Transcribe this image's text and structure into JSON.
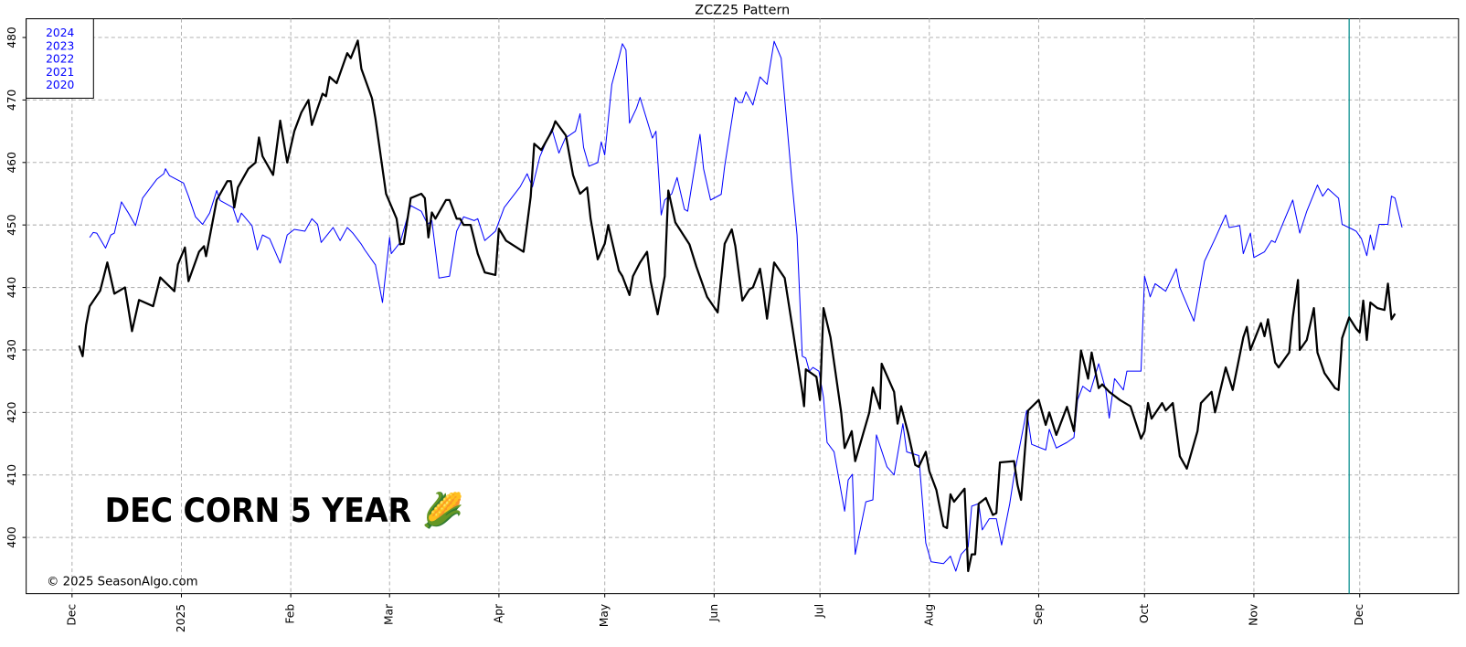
{
  "chart_data": {
    "type": "line",
    "title": "ZCZ25  Pattern",
    "xlim": [
      -13,
      393
    ],
    "ylim": [
      391,
      483
    ],
    "yticks": [
      400,
      410,
      420,
      430,
      440,
      450,
      460,
      470,
      480
    ],
    "xticks": [
      {
        "value": 0,
        "label": "Dec"
      },
      {
        "value": 31,
        "label": "2025"
      },
      {
        "value": 62,
        "label": "Feb"
      },
      {
        "value": 90,
        "label": "Mar"
      },
      {
        "value": 121,
        "label": "Apr"
      },
      {
        "value": 151,
        "label": "May"
      },
      {
        "value": 182,
        "label": "Jun"
      },
      {
        "value": 212,
        "label": "Jul"
      },
      {
        "value": 243,
        "label": "Aug"
      },
      {
        "value": 274,
        "label": "Sep"
      },
      {
        "value": 304,
        "label": "Oct"
      },
      {
        "value": 335,
        "label": "Nov"
      },
      {
        "value": 365,
        "label": "Dec"
      }
    ],
    "grid": true,
    "legend": [
      "2024",
      "2023",
      "2022",
      "2021",
      "2020"
    ],
    "legend_color": "#0000ff",
    "marker_x": 362,
    "marker_color": "#008b8b",
    "annotation": "DEC CORN 5 YEAR 🌽",
    "credit": "© 2025 SeasonAlgo.com",
    "series": [
      {
        "color": "#0000ff",
        "width": 1,
        "x": [
          5,
          6,
          7,
          9.5,
          11,
          12,
          14,
          16,
          18,
          20,
          24,
          26,
          26.5,
          27.6,
          31.6,
          33,
          35,
          37,
          39,
          41,
          42,
          45.6,
          47,
          48,
          51,
          52.5,
          54,
          56,
          59,
          61,
          63,
          66,
          68,
          69.6,
          70.6,
          74,
          76,
          78,
          79.6,
          82,
          83,
          86,
          88,
          90,
          90.5,
          93,
          96,
          99,
          100.8,
          102,
          104,
          107,
          109,
          111,
          114,
          115,
          117,
          120,
          122.5,
          127,
          129,
          130.5,
          132.6,
          136,
          138,
          139.8,
          142.7,
          144,
          145,
          146.5,
          149,
          150,
          151,
          153,
          155,
          156,
          157,
          158,
          160,
          161,
          164.5,
          165.5,
          167,
          168,
          170,
          171.5,
          173.6,
          174.5,
          178,
          179,
          181,
          184,
          185,
          188,
          189,
          190,
          191,
          193,
          195,
          197,
          199,
          201,
          204,
          205.5,
          207,
          208,
          209,
          210,
          211.7,
          213,
          214,
          216,
          219,
          220,
          221.2,
          222,
          225,
          227,
          228,
          231,
          233,
          235.5,
          236.6,
          240,
          242,
          243.5,
          247,
          249,
          250.5,
          252,
          254,
          255,
          257,
          258,
          260,
          262,
          263.5,
          265.8,
          267,
          270.6,
          272,
          276,
          277,
          279,
          282,
          284,
          285,
          286.5,
          288.6,
          291,
          293,
          294,
          295.5,
          298,
          299,
          301,
          303,
          304,
          305.6,
          307,
          310,
          311,
          313,
          314,
          318,
          321,
          324,
          327,
          328,
          331,
          332,
          334,
          335,
          338,
          340,
          341,
          344,
          346,
          348,
          350,
          353,
          354.5,
          356,
          359,
          360,
          363,
          364,
          365.5,
          367,
          368,
          369,
          370.5,
          373,
          374,
          375,
          377
        ],
        "values": [
          448,
          448.8,
          448.7,
          446.3,
          448.4,
          448.7,
          453.7,
          451.9,
          449.9,
          454.3,
          457.3,
          458.2,
          459,
          457.9,
          456.7,
          454.6,
          451.3,
          450.1,
          451.9,
          455.5,
          453.9,
          452.8,
          450.4,
          451.9,
          449.9,
          446,
          448.4,
          447.8,
          443.9,
          448.4,
          449.3,
          449,
          451,
          450.1,
          447.2,
          449.6,
          447.5,
          449.6,
          448.7,
          446.9,
          446,
          443.6,
          437.6,
          448,
          445.4,
          447.2,
          453.1,
          452.2,
          450.1,
          450.7,
          441.5,
          441.8,
          449,
          451.3,
          450.7,
          451,
          447.5,
          449,
          452.8,
          456.1,
          458.2,
          456.1,
          460.9,
          465.4,
          461.5,
          463.9,
          465,
          467.8,
          462.4,
          459.4,
          460,
          463.3,
          461.2,
          472.5,
          476.7,
          479,
          478,
          466.3,
          468.7,
          470.4,
          463.9,
          465,
          451.6,
          454,
          455,
          457.6,
          452.5,
          452.2,
          464.5,
          459,
          454,
          454.9,
          459.4,
          470.4,
          469.6,
          469.6,
          471.3,
          469.2,
          473.7,
          472.5,
          479.4,
          476.7,
          457.3,
          448.4,
          429,
          428.7,
          426.6,
          427.2,
          426.6,
          422.4,
          415.2,
          413.7,
          404.2,
          409.2,
          410.1,
          397.3,
          405.7,
          406,
          416.4,
          411.3,
          410,
          418.2,
          413.7,
          413.1,
          399.1,
          396.1,
          395.8,
          397,
          394.6,
          397.3,
          398.5,
          405,
          405.4,
          401.2,
          403,
          403,
          398.8,
          405.4,
          409.9,
          420.3,
          414.9,
          414,
          417.3,
          414.3,
          415.2,
          416,
          422,
          424.2,
          423.3,
          427.8,
          423.6,
          419.1,
          425.4,
          423.6,
          426.6,
          426.6,
          426.6,
          441.8,
          438.5,
          440.6,
          439.4,
          440.6,
          443,
          440,
          434.6,
          444.2,
          447.8,
          451.6,
          449.6,
          449.9,
          445.4,
          448.7,
          444.8,
          445.7,
          447.5,
          447.2,
          451.3,
          454,
          448.7,
          452.2,
          456.4,
          454.6,
          455.8,
          454.3,
          450.1,
          449.3,
          449,
          447.8,
          445.1,
          448.4,
          446,
          450.1,
          450.1,
          454.6,
          454.3,
          449.6
        ]
      },
      {
        "color": "#000000",
        "width": 2.2,
        "x": [
          2,
          3,
          4,
          5,
          8,
          10,
          12,
          15,
          17,
          19,
          23,
          25,
          29,
          30,
          32,
          33,
          36,
          37.4,
          38,
          41,
          44,
          45,
          46,
          47,
          50,
          52,
          53,
          54,
          57,
          59,
          61,
          63,
          65,
          67,
          68,
          71,
          72,
          73,
          75,
          78,
          79,
          81,
          82,
          85,
          86,
          89,
          92,
          93,
          94,
          96,
          99,
          100,
          101,
          102,
          103,
          106,
          107,
          109,
          110,
          111,
          113,
          115,
          117,
          120,
          121,
          123,
          128,
          130,
          131,
          133,
          136,
          137,
          140,
          142,
          143,
          144,
          146,
          147,
          149,
          151,
          152,
          155,
          156,
          158,
          159,
          161,
          163,
          164,
          166,
          168,
          169,
          171,
          175,
          177,
          180,
          183,
          185,
          187,
          188,
          190,
          192,
          193,
          195,
          196,
          197,
          199,
          202,
          204,
          207,
          207.5,
          208,
          211,
          212,
          213,
          215,
          218,
          219,
          221,
          222,
          226,
          227,
          229,
          229.5,
          233,
          234,
          235,
          237,
          239,
          240,
          242,
          243,
          245,
          247,
          248,
          249,
          250,
          253,
          254,
          255,
          256,
          257,
          259,
          261,
          262,
          263,
          267,
          268,
          269,
          271,
          274,
          276,
          277,
          279,
          282,
          284,
          286,
          288,
          289,
          291,
          292,
          294,
          297,
          300,
          303,
          304,
          305,
          306,
          309,
          310,
          312,
          314,
          316,
          319,
          320,
          323,
          324,
          327,
          329,
          332,
          333,
          334,
          337,
          338,
          339,
          341,
          342,
          345,
          346,
          347.5,
          348,
          350,
          352,
          353,
          355,
          358,
          359,
          360,
          362,
          364,
          365,
          366,
          367,
          368,
          370,
          372,
          373,
          374,
          375
        ],
        "values": [
          430.7,
          429,
          434,
          437,
          439.5,
          444,
          439,
          440,
          433,
          438,
          437,
          441.6,
          439.4,
          443.7,
          446.4,
          441,
          445.7,
          446.6,
          445,
          454,
          457,
          457,
          452.8,
          456,
          459,
          460,
          464,
          461,
          458,
          466.7,
          460,
          465,
          468,
          470,
          466,
          471,
          470.6,
          473.7,
          472.7,
          477.5,
          476.7,
          479.5,
          475,
          470.3,
          467,
          455,
          451,
          446.9,
          447,
          454.3,
          455,
          454.3,
          448,
          452,
          451,
          454,
          454,
          451,
          451,
          450,
          450,
          445.4,
          442.4,
          442,
          449.4,
          447.5,
          445.7,
          454.5,
          463,
          462,
          465,
          466.6,
          464.3,
          458,
          456.4,
          455,
          456,
          451,
          444.5,
          447,
          450,
          442.7,
          441.8,
          438.8,
          441.8,
          444,
          445.7,
          441,
          435.7,
          441.8,
          455.5,
          450.4,
          446.9,
          443.3,
          438.5,
          436,
          447,
          449.3,
          446.6,
          437.9,
          439.7,
          440,
          443,
          439.4,
          435,
          444,
          441.5,
          434.3,
          423.3,
          421,
          426.9,
          425.7,
          422,
          436.7,
          432,
          420,
          414.3,
          417,
          412.2,
          420,
          424,
          420.6,
          427.8,
          423.3,
          418.2,
          421,
          416.7,
          411.6,
          411.3,
          413.7,
          410.6,
          407.6,
          401.8,
          401.5,
          406.9,
          405.7,
          407.8,
          394.6,
          397.3,
          397.3,
          405.4,
          406.3,
          403.6,
          403.9,
          412,
          412.2,
          408.4,
          406,
          420.3,
          422,
          418,
          420,
          416.4,
          420.9,
          417,
          429.9,
          425.4,
          429.6,
          423.9,
          424.5,
          423.3,
          422,
          421,
          415.8,
          417,
          421.5,
          419,
          421.5,
          420.3,
          421.5,
          413,
          411,
          417,
          421.5,
          423.3,
          420,
          427.2,
          423.6,
          432,
          433.7,
          430,
          434.3,
          432.2,
          434.9,
          428,
          427.2,
          429.6,
          435.2,
          441.2,
          430,
          431.6,
          436.7,
          429.6,
          426.3,
          423.9,
          423.6,
          431.9,
          435.2,
          433.4,
          432.8,
          437.9,
          431.6,
          437.6,
          436.7,
          436.4,
          440.6,
          434.9,
          435.8
        ]
      }
    ]
  }
}
